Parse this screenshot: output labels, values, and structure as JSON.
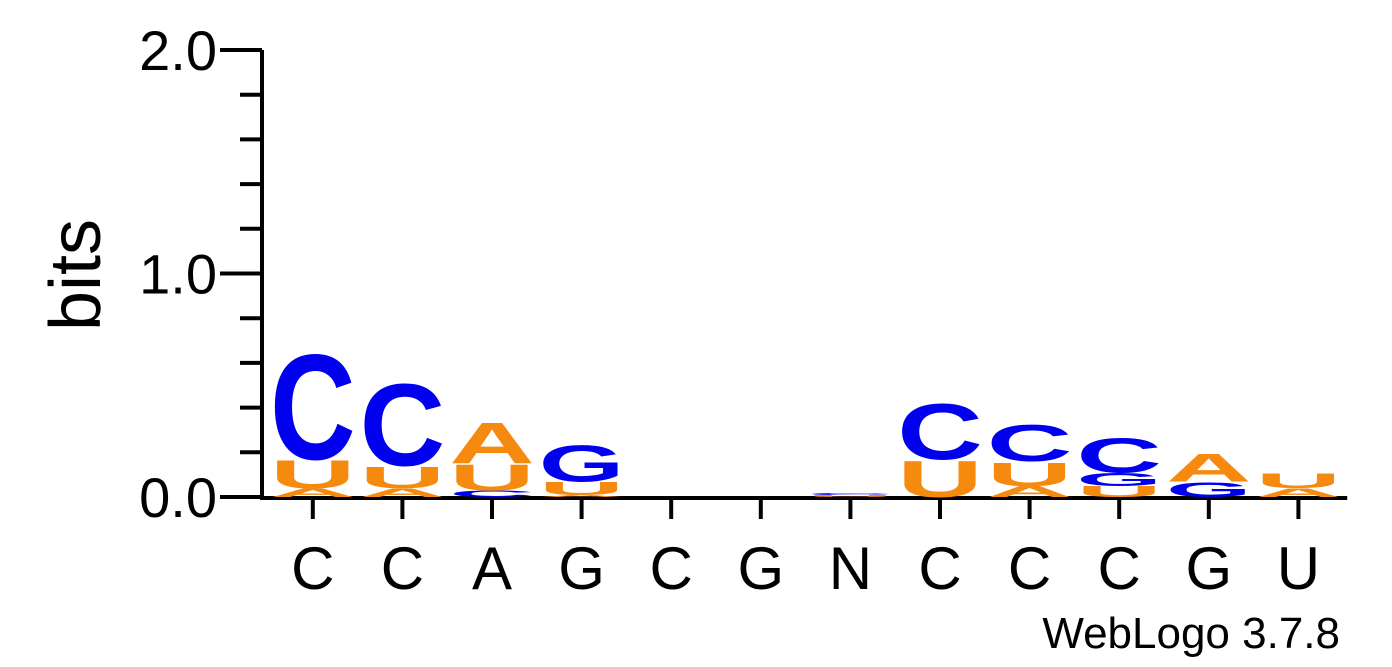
{
  "chart_data": {
    "type": "sequence-logo",
    "ylabel": "bits",
    "ylim": [
      0,
      2
    ],
    "y_ticks": [
      {
        "value": 0,
        "label": "0.0"
      },
      {
        "value": 1,
        "label": "1.0"
      },
      {
        "value": 2,
        "label": "2.0"
      }
    ],
    "minor_tick_step": 0.2,
    "x_labels": [
      "C",
      "C",
      "A",
      "G",
      "C",
      "G",
      "N",
      "C",
      "C",
      "C",
      "G",
      "U"
    ],
    "colors": {
      "C": "#0000ee",
      "G": "#0000ee",
      "A": "#f58a0f",
      "U": "#f58a0f"
    },
    "columns": [
      {
        "stack": [
          {
            "letter": "A",
            "bits": 0.04
          },
          {
            "letter": "U",
            "bits": 0.13
          },
          {
            "letter": "C",
            "bits": 0.49
          }
        ]
      },
      {
        "stack": [
          {
            "letter": "A",
            "bits": 0.04
          },
          {
            "letter": "U",
            "bits": 0.1
          },
          {
            "letter": "C",
            "bits": 0.38
          }
        ]
      },
      {
        "stack": [
          {
            "letter": "C",
            "bits": 0.03
          },
          {
            "letter": "U",
            "bits": 0.12
          },
          {
            "letter": "A",
            "bits": 0.19
          }
        ]
      },
      {
        "stack": [
          {
            "letter": "A",
            "bits": 0.01
          },
          {
            "letter": "U",
            "bits": 0.06
          },
          {
            "letter": "G",
            "bits": 0.17
          }
        ]
      },
      {
        "stack": []
      },
      {
        "stack": []
      },
      {
        "stack": [
          {
            "letter": "U",
            "bits": 0.01
          },
          {
            "letter": "C",
            "bits": 0.01
          }
        ]
      },
      {
        "stack": [
          {
            "letter": "U",
            "bits": 0.17
          },
          {
            "letter": "C",
            "bits": 0.26
          }
        ]
      },
      {
        "stack": [
          {
            "letter": "A",
            "bits": 0.05
          },
          {
            "letter": "U",
            "bits": 0.11
          },
          {
            "letter": "C",
            "bits": 0.17
          }
        ]
      },
      {
        "stack": [
          {
            "letter": "U",
            "bits": 0.05
          },
          {
            "letter": "G",
            "bits": 0.06
          },
          {
            "letter": "C",
            "bits": 0.16
          }
        ]
      },
      {
        "stack": [
          {
            "letter": "G",
            "bits": 0.07
          },
          {
            "letter": "A",
            "bits": 0.13
          }
        ]
      },
      {
        "stack": [
          {
            "letter": "A",
            "bits": 0.04
          },
          {
            "letter": "U",
            "bits": 0.07
          }
        ]
      }
    ]
  },
  "footer": {
    "text": "WebLogo 3.7.8"
  }
}
